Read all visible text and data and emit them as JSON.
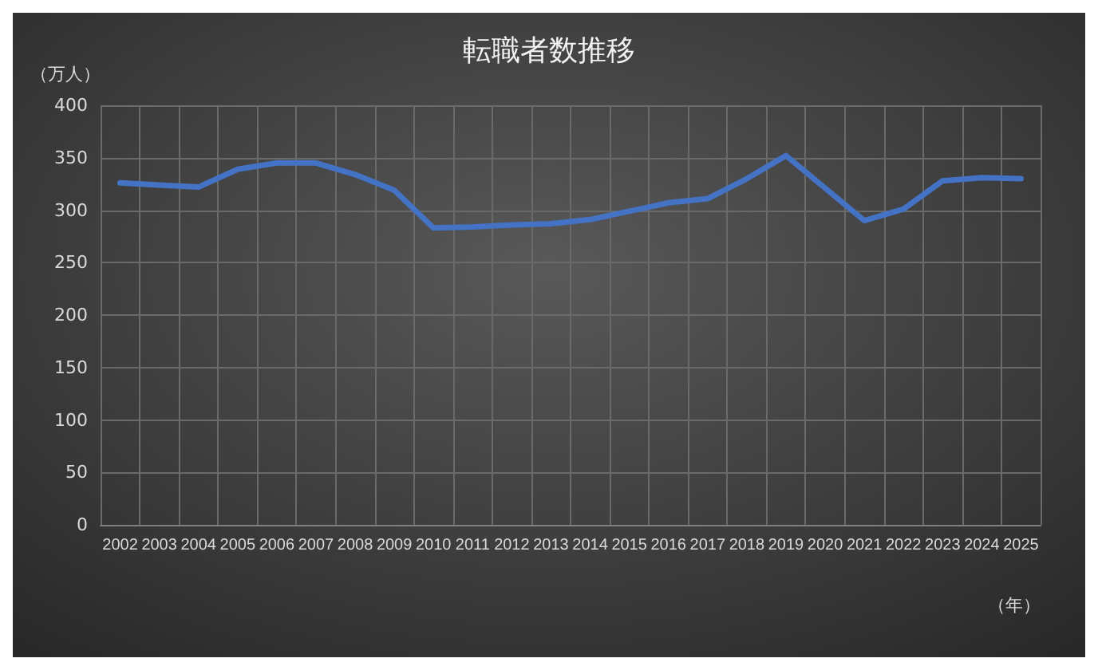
{
  "chart_data": {
    "type": "line",
    "title": "転職者数推移",
    "ylabel": "（万人）",
    "xlabel": "（年）",
    "categories": [
      "2002",
      "2003",
      "2004",
      "2005",
      "2006",
      "2007",
      "2008",
      "2009",
      "2010",
      "2011",
      "2012",
      "2013",
      "2014",
      "2015",
      "2016",
      "2017",
      "2018",
      "2019",
      "2020",
      "2021",
      "2022",
      "2023",
      "2024",
      "2025"
    ],
    "series": [
      {
        "color": "#4472c4",
        "values": [
          326,
          324,
          322,
          339,
          345,
          345,
          334,
          319,
          283,
          284,
          286,
          287,
          291,
          299,
          307,
          311,
          330,
          352,
          321,
          290,
          301,
          328,
          331,
          330
        ]
      }
    ],
    "ylim": [
      0,
      400
    ],
    "yticks": [
      0,
      50,
      100,
      150,
      200,
      250,
      300,
      350,
      400
    ],
    "grid": true,
    "marker": "none",
    "line_style": "solid"
  }
}
